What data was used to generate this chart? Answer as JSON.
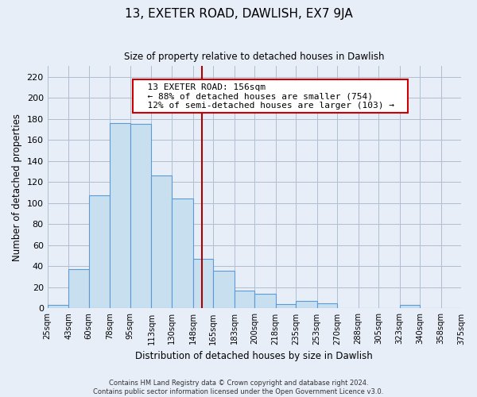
{
  "title": "13, EXETER ROAD, DAWLISH, EX7 9JA",
  "subtitle": "Size of property relative to detached houses in Dawlish",
  "xlabel": "Distribution of detached houses by size in Dawlish",
  "ylabel": "Number of detached properties",
  "bin_edges": [
    25,
    43,
    60,
    78,
    95,
    113,
    130,
    148,
    165,
    183,
    200,
    218,
    235,
    253,
    270,
    288,
    305,
    323,
    340,
    358,
    375
  ],
  "bar_heights": [
    3,
    37,
    107,
    176,
    175,
    126,
    104,
    47,
    36,
    17,
    14,
    4,
    7,
    5,
    0,
    0,
    0,
    3,
    0,
    0
  ],
  "bar_color": "#c8dff0",
  "bar_edgecolor": "#5b9bd5",
  "grid_color": "#b0bfd0",
  "vline_x": 156,
  "vline_color": "#aa0000",
  "ylim": [
    0,
    230
  ],
  "yticks": [
    0,
    20,
    40,
    60,
    80,
    100,
    120,
    140,
    160,
    180,
    200,
    220
  ],
  "annotation_title": "13 EXETER ROAD: 156sqm",
  "annotation_line1": "← 88% of detached houses are smaller (754)",
  "annotation_line2": "12% of semi-detached houses are larger (103) →",
  "annotation_box_color": "#ffffff",
  "annotation_border_color": "#cc0000",
  "footer_line1": "Contains HM Land Registry data © Crown copyright and database right 2024.",
  "footer_line2": "Contains public sector information licensed under the Open Government Licence v3.0.",
  "background_color": "#e8eef8",
  "plot_background_color": "#e8eef8"
}
